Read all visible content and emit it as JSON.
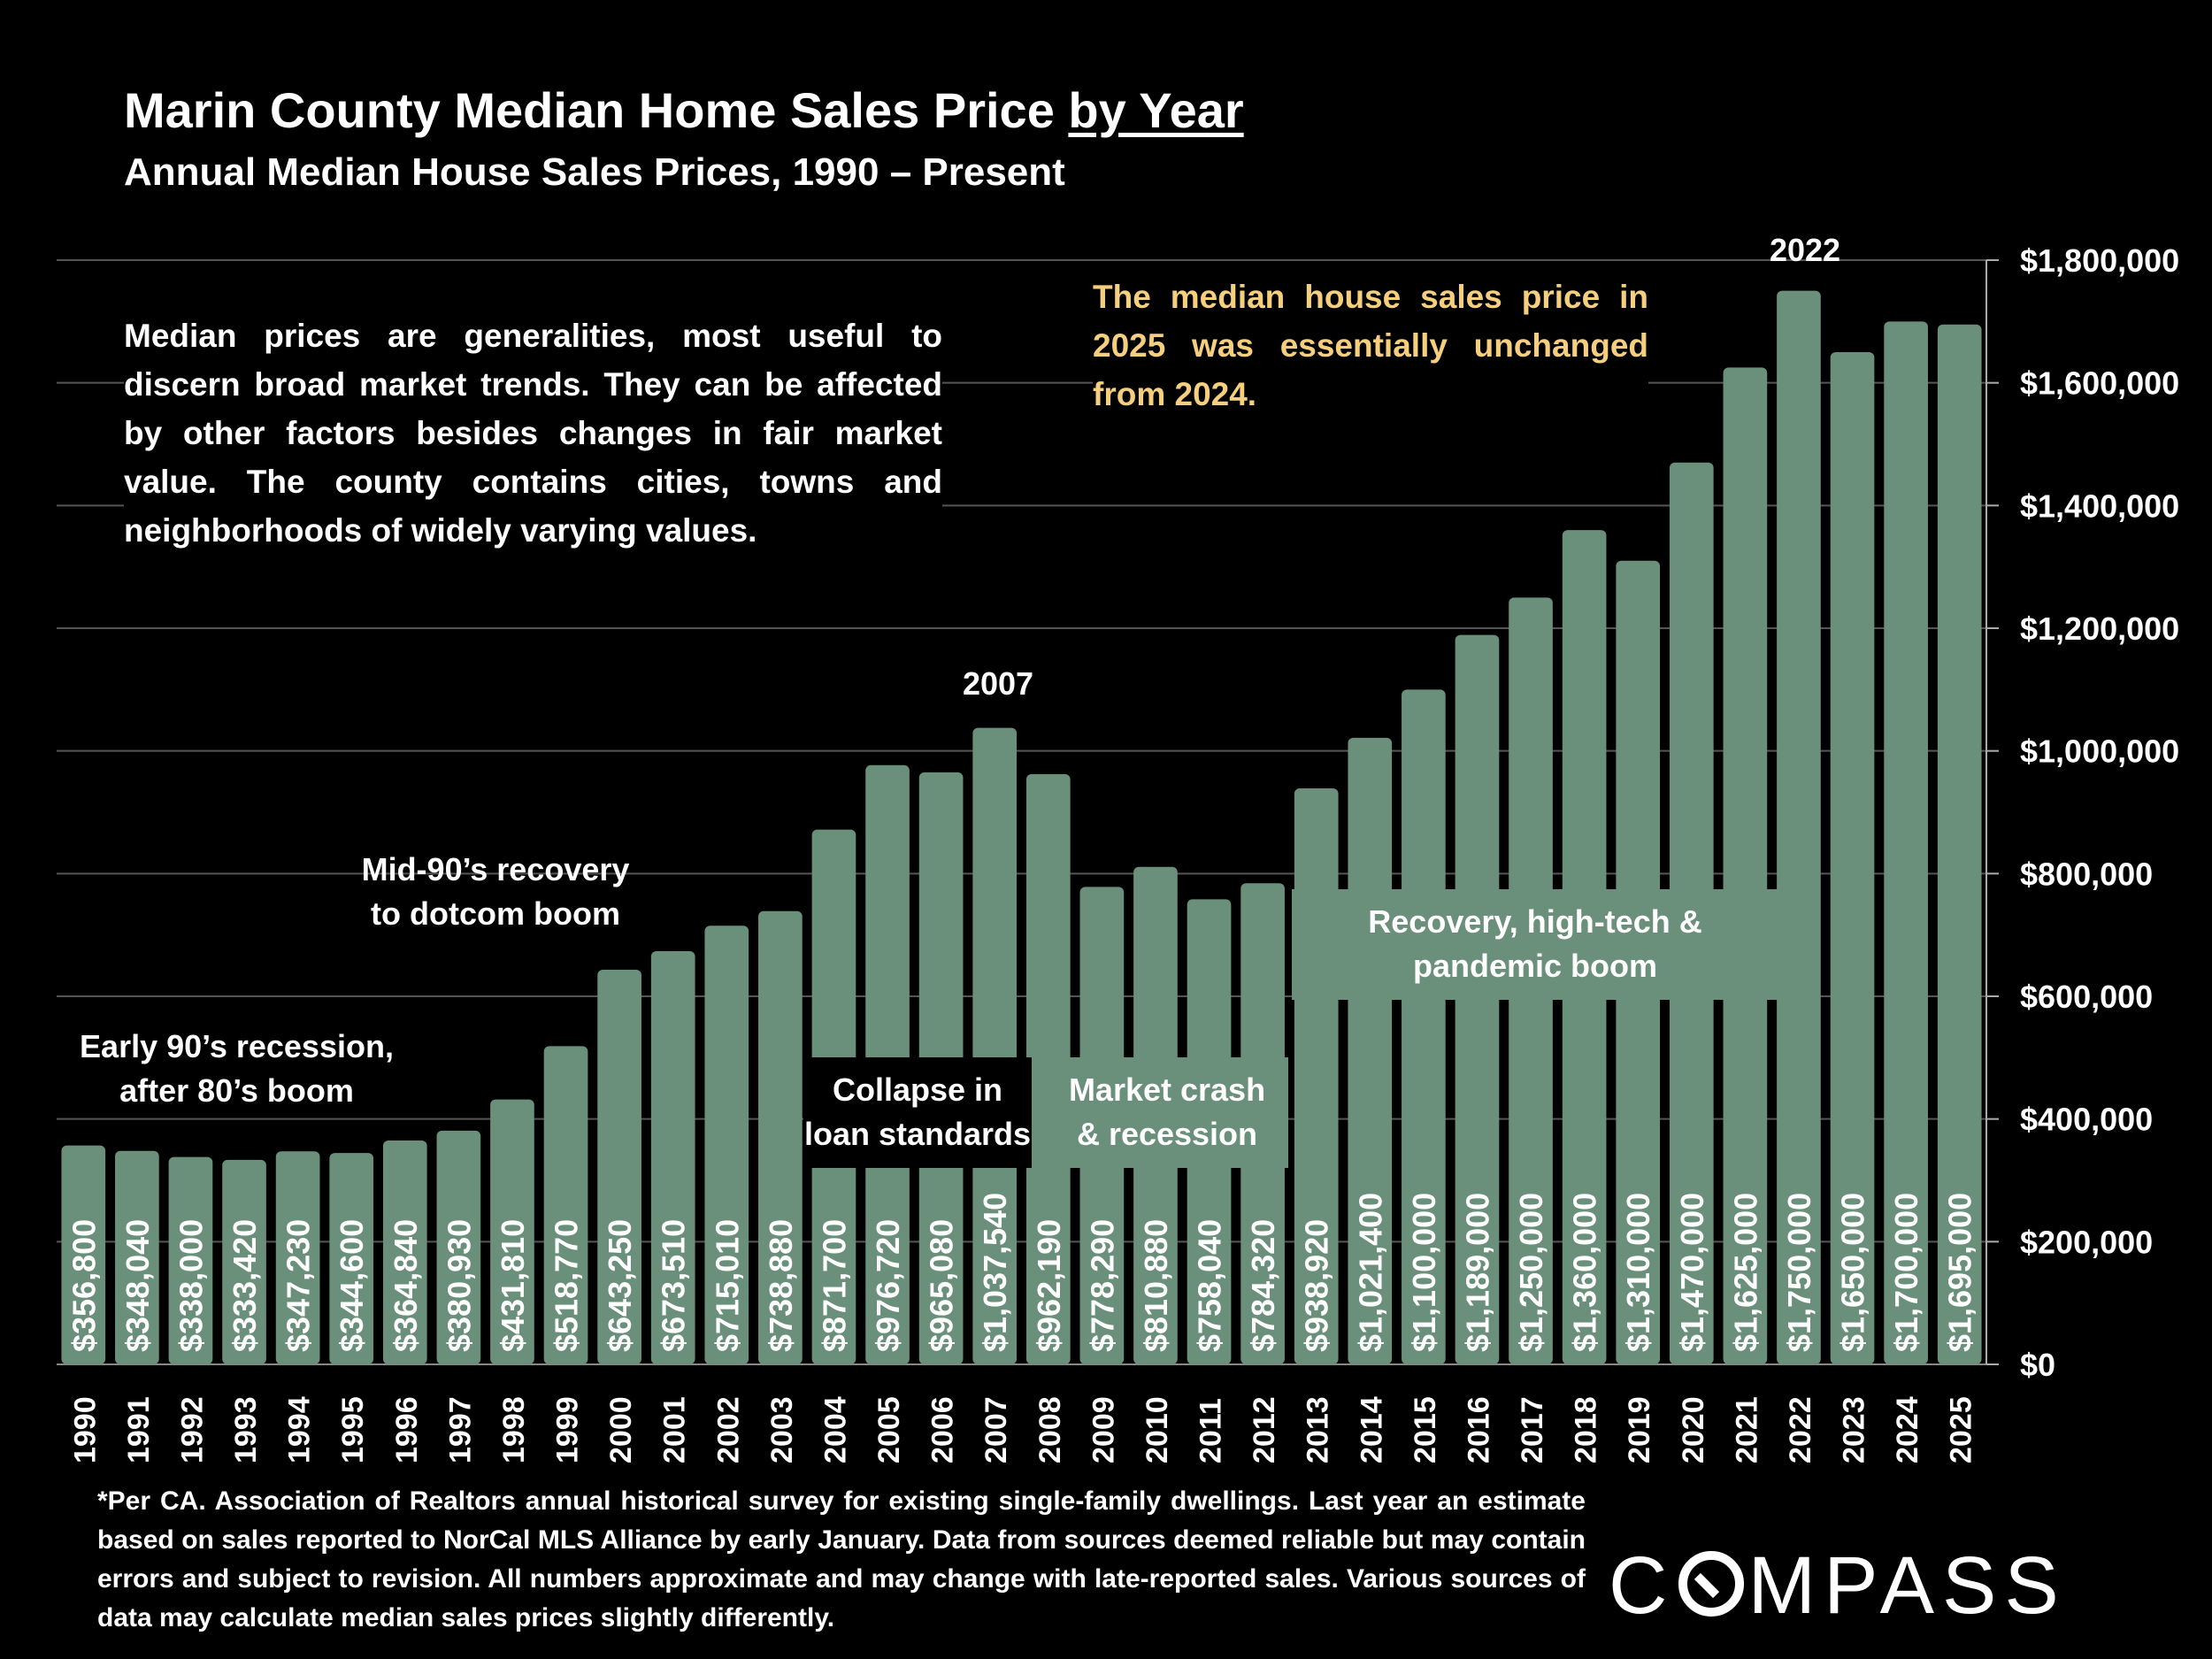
{
  "header": {
    "title_prefix": "Marin County Median Home Sales Price",
    "title_underlined": "by Year",
    "subtitle": "Annual Median House Sales Prices, 1990 – Present"
  },
  "note": "Median prices are generalities, most useful to discern broad market trends. They can be affected by other factors besides changes in fair market value. The county contains cities, towns and neighborhoods of widely varying values.",
  "callout": "The median house sales price in 2025 was essentially unchanged from 2024.",
  "annotations": {
    "early90s": [
      "Early 90’s recession,",
      "after 80’s boom"
    ],
    "mid90s": [
      "Mid-90’s recovery",
      "to dotcom boom"
    ],
    "collapse": [
      "Collapse in",
      "loan standards"
    ],
    "crash": [
      "Market crash",
      "& recession"
    ],
    "recovery": [
      "Recovery, high-tech &",
      "pandemic boom"
    ],
    "peak2007": "2007",
    "peak2022": "2022"
  },
  "footnote": "*Per CA. Association of Realtors annual historical survey for existing single-family dwellings. Last year an estimate based on sales reported to NorCal MLS Alliance by early January. Data from sources deemed reliable but may contain errors and subject to revision. All numbers approximate and may change with late-reported sales. Various sources of data may calculate median sales prices slightly differently.",
  "logo": {
    "before": "C",
    "after": "MPASS"
  },
  "colors": {
    "bar": "#6a8f7a",
    "background": "#000000",
    "text": "#ffffff",
    "callout": "#f5cf7e",
    "grid": "#555555"
  },
  "chart_data": {
    "type": "bar",
    "title": "Marin County Median Home Sales Price by Year",
    "xlabel": "",
    "ylabel": "",
    "ylim": [
      0,
      1800000
    ],
    "yticks": [
      0,
      200000,
      400000,
      600000,
      800000,
      1000000,
      1200000,
      1400000,
      1600000,
      1800000
    ],
    "ytick_labels": [
      "$0",
      "$200,000",
      "$400,000",
      "$600,000",
      "$800,000",
      "$1,000,000",
      "$1,200,000",
      "$1,400,000",
      "$1,600,000",
      "$1,800,000"
    ],
    "axis_side": "right",
    "grid": true,
    "categories": [
      "1990",
      "1991",
      "1992",
      "1993",
      "1994",
      "1995",
      "1996",
      "1997",
      "1998",
      "1999",
      "2000",
      "2001",
      "2002",
      "2003",
      "2004",
      "2005",
      "2006",
      "2007",
      "2008",
      "2009",
      "2010",
      "2011",
      "2012",
      "2013",
      "2014",
      "2015",
      "2016",
      "2017",
      "2018",
      "2019",
      "2020",
      "2021",
      "2022",
      "2023",
      "2024",
      "2025"
    ],
    "values": [
      356800,
      348040,
      338000,
      333420,
      347230,
      344600,
      364840,
      380930,
      431810,
      518770,
      643250,
      673510,
      715010,
      738880,
      871700,
      976720,
      965080,
      1037540,
      962190,
      778290,
      810880,
      758040,
      784320,
      938920,
      1021400,
      1100000,
      1189000,
      1250000,
      1360000,
      1310000,
      1470000,
      1625000,
      1750000,
      1650000,
      1700000,
      1695000
    ],
    "value_labels": [
      "$356,800",
      "$348,040",
      "$338,000",
      "$333,420",
      "$347,230",
      "$344,600",
      "$364,840",
      "$380,930",
      "$431,810",
      "$518,770",
      "$643,250",
      "$673,510",
      "$715,010",
      "$738,880",
      "$871,700",
      "$976,720",
      "$965,080",
      "$1,037,540",
      "$962,190",
      "$778,290",
      "$810,880",
      "$758,040",
      "$784,320",
      "$938,920",
      "$1,021,400",
      "$1,100,000",
      "$1,189,000",
      "$1,250,000",
      "$1,360,000",
      "$1,310,000",
      "$1,470,000",
      "$1,625,000",
      "$1,750,000",
      "$1,650,000",
      "$1,700,000",
      "$1,695,000"
    ]
  }
}
